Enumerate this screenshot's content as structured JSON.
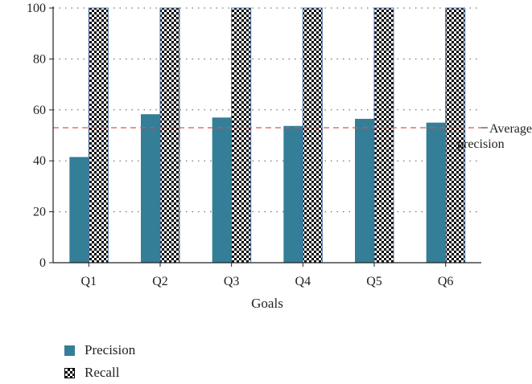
{
  "chart_data": {
    "type": "bar",
    "categories": [
      "Q1",
      "Q2",
      "Q3",
      "Q4",
      "Q5",
      "Q6"
    ],
    "series": [
      {
        "name": "Precision",
        "values": [
          41.5,
          58.3,
          57.0,
          53.7,
          56.5,
          55.0
        ],
        "color": "#347e97",
        "pattern": "solid"
      },
      {
        "name": "Recall",
        "values": [
          100,
          100,
          100,
          100,
          100,
          100
        ],
        "color": "#000000",
        "pattern": "checkerboard"
      }
    ],
    "xlabel": "Goals",
    "ylabel": "",
    "ylim": [
      0,
      100
    ],
    "yticks": [
      "0",
      "20",
      "40",
      "60",
      "80",
      "100"
    ],
    "grid": true,
    "legend_position": "bottom-left",
    "reference_line": {
      "value": 53,
      "label_line1": "Average",
      "label_line2": "precision",
      "color": "#d9534f"
    }
  }
}
